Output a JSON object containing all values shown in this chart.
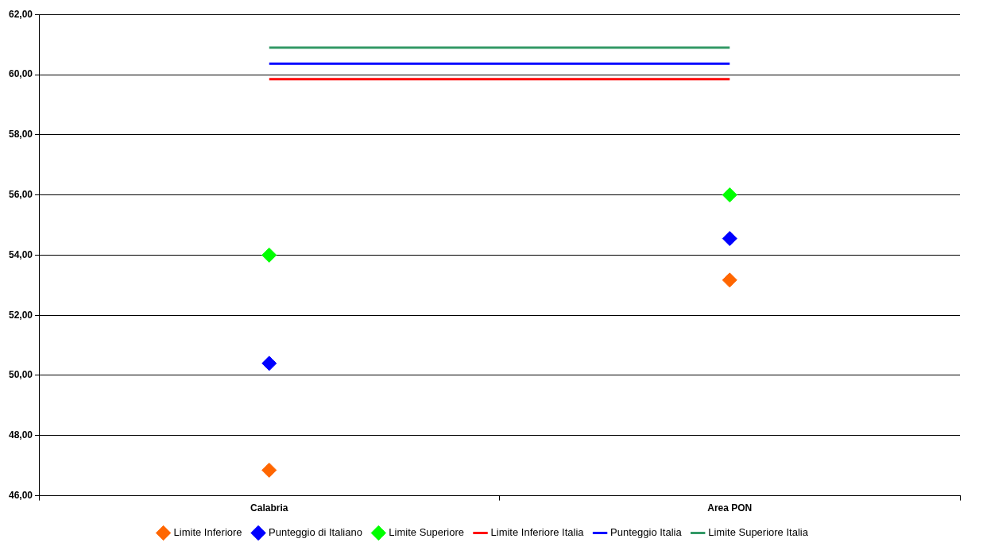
{
  "chart_data": {
    "type": "line",
    "categories": [
      "Calabria",
      "Area PON"
    ],
    "series": [
      {
        "name": "Limite Inferiore",
        "type": "scatter",
        "marker": "diamond",
        "color": "#ff6600",
        "values": [
          46.85,
          53.17
        ]
      },
      {
        "name": "Punteggio di Italiano",
        "type": "scatter",
        "marker": "diamond",
        "color": "#0000ff",
        "values": [
          50.4,
          54.55
        ]
      },
      {
        "name": "Limite Superiore",
        "type": "scatter",
        "marker": "diamond",
        "color": "#00ff00",
        "values": [
          54.0,
          56.0
        ]
      },
      {
        "name": "Limite Inferiore Italia",
        "marker": "none",
        "color": "#ff0000",
        "values": [
          59.85,
          59.85
        ]
      },
      {
        "name": "Punteggio Italia",
        "marker": "none",
        "color": "#0000ff",
        "values": [
          60.36,
          60.36
        ]
      },
      {
        "name": "Limite Superiore Italia",
        "marker": "none",
        "color": "#339966",
        "values": [
          60.9,
          60.9
        ]
      }
    ],
    "ylim": [
      46,
      62
    ],
    "yticks": [
      {
        "value": 46,
        "label": "46,00"
      },
      {
        "value": 48,
        "label": "48,00"
      },
      {
        "value": 50,
        "label": "50,00"
      },
      {
        "value": 52,
        "label": "52,00"
      },
      {
        "value": 54,
        "label": "54,00"
      },
      {
        "value": 56,
        "label": "56,00"
      },
      {
        "value": 58,
        "label": "58,00"
      },
      {
        "value": 60,
        "label": "60,00"
      },
      {
        "value": 62,
        "label": "62,00"
      }
    ],
    "grid": "y",
    "legend": "bottom"
  }
}
